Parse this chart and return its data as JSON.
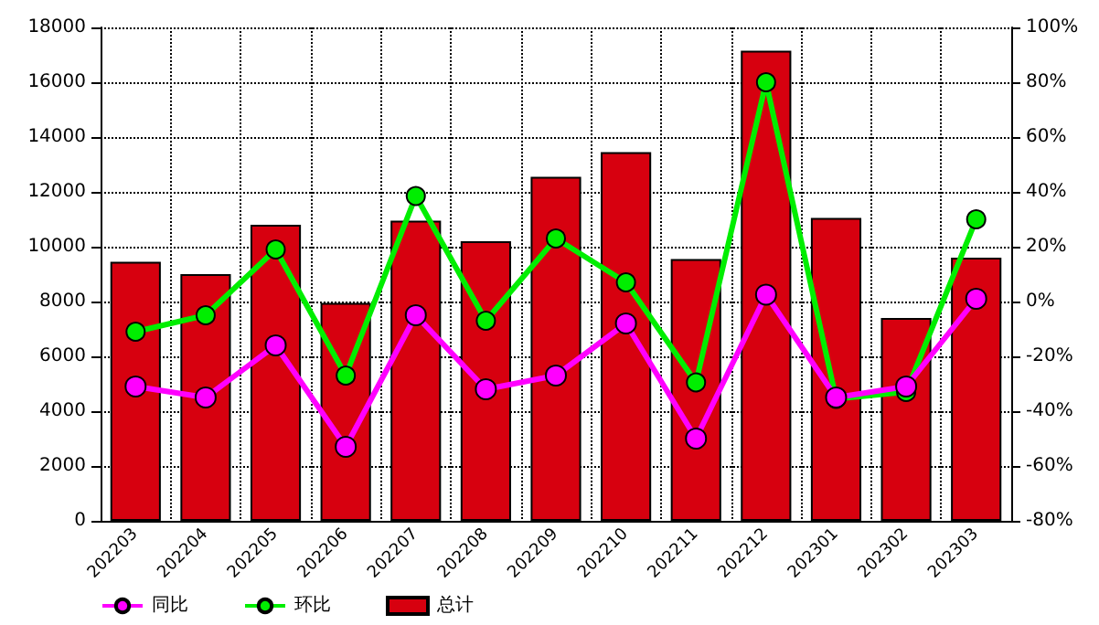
{
  "chart_data": {
    "type": "bar",
    "categories": [
      "202203",
      "202204",
      "202205",
      "202206",
      "202207",
      "202208",
      "202209",
      "202210",
      "202211",
      "202212",
      "202301",
      "202302",
      "202303"
    ],
    "series": [
      {
        "name": "同比",
        "type": "line",
        "axis": "y2",
        "color": "#ff00ff",
        "values": [
          -31,
          -35,
          -16,
          -53,
          -5,
          -32,
          -27,
          -8,
          -50,
          2.5,
          -35,
          -31,
          1
        ]
      },
      {
        "name": "环比",
        "type": "line",
        "axis": "y2",
        "color": "#00ee00",
        "values": [
          -11,
          -5,
          19,
          -27,
          38.5,
          -7,
          23,
          7,
          -29.5,
          80,
          -35.5,
          -33,
          30
        ]
      },
      {
        "name": "总计",
        "color": "#d7000f",
        "values": [
          9450,
          9000,
          10800,
          7950,
          10950,
          10200,
          12550,
          13450,
          9550,
          17150,
          11050,
          7400,
          9600
        ]
      }
    ],
    "ylim": [
      0,
      18000
    ],
    "yticks": [
      0,
      2000,
      4000,
      6000,
      8000,
      10000,
      12000,
      14000,
      16000,
      18000
    ],
    "y2lim": [
      -80,
      100
    ],
    "y2ticks": [
      {
        "value": -80,
        "label": "-80%"
      },
      {
        "value": -60,
        "label": "-60%"
      },
      {
        "value": -40,
        "label": "-40%"
      },
      {
        "value": -20,
        "label": "-20%"
      },
      {
        "value": 0,
        "label": "0%"
      },
      {
        "value": 20,
        "label": "20%"
      },
      {
        "value": 40,
        "label": "40%"
      },
      {
        "value": 60,
        "label": "60%"
      },
      {
        "value": 80,
        "label": "80%"
      },
      {
        "value": 100,
        "label": "100%"
      }
    ],
    "grid": true,
    "legend": "bottom left",
    "marker": "circle",
    "line_style": "solid"
  }
}
